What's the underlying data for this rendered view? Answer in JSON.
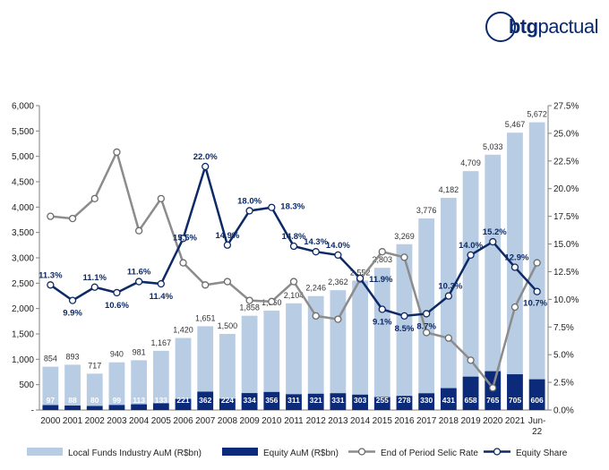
{
  "logo": {
    "bold": "btg",
    "rest": "pactual"
  },
  "chart_data": {
    "type": "bar",
    "categories": [
      "2000",
      "2001",
      "2002",
      "2003",
      "2004",
      "2005",
      "2006",
      "2007",
      "2008",
      "2009",
      "2010",
      "2011",
      "2012",
      "2013",
      "2014",
      "2015",
      "2016",
      "2017",
      "2018",
      "2019",
      "2020",
      "2021",
      "Jun-22"
    ],
    "y_left": {
      "ylim": [
        0,
        6000
      ],
      "ticks": [
        "-",
        "500",
        "1,000",
        "1,500",
        "2,000",
        "2,500",
        "3,000",
        "3,500",
        "4,000",
        "4,500",
        "5,000",
        "5,500",
        "6,000"
      ]
    },
    "y_right": {
      "ylim": [
        0,
        27.5
      ],
      "ticks": [
        "0.0%",
        "2.5%",
        "5.0%",
        "7.5%",
        "10.0%",
        "12.5%",
        "15.0%",
        "17.5%",
        "20.0%",
        "22.5%",
        "25.0%",
        "27.5%"
      ]
    },
    "series": [
      {
        "name": "Local Funds Industry AuM (R$bn)",
        "type": "bar",
        "axis": "left",
        "color": "#b8cce4",
        "values": [
          854,
          893,
          717,
          940,
          981,
          1167,
          1420,
          1651,
          1500,
          1858,
          1960,
          2104,
          2246,
          2362,
          2552,
          2803,
          3269,
          3776,
          4182,
          4709,
          5033,
          5467,
          5672
        ],
        "labels": [
          "854",
          "893",
          "717",
          "940",
          "981",
          "1,167",
          "1,420",
          "1,651",
          "1,500",
          "1,858",
          "1,960",
          "2,104",
          "2,246",
          "2,362",
          "2,552",
          "2,803",
          "3,269",
          "3,776",
          "4,182",
          "4,709",
          "5,033",
          "5,467",
          "5,672"
        ]
      },
      {
        "name": "Equity AuM (R$bn)",
        "type": "bar",
        "axis": "left",
        "color": "#0b2a7a",
        "values": [
          97,
          88,
          80,
          99,
          113,
          133,
          221,
          362,
          224,
          334,
          356,
          311,
          321,
          331,
          303,
          255,
          278,
          330,
          431,
          658,
          765,
          705,
          606
        ],
        "labels": [
          "97",
          "88",
          "80",
          "99",
          "113",
          "133",
          "221",
          "362",
          "224",
          "334",
          "356",
          "311",
          "321",
          "331",
          "303",
          "255",
          "278",
          "330",
          "431",
          "658",
          "765",
          "705",
          "606"
        ]
      },
      {
        "name": "End of Period Selic Rate",
        "type": "line",
        "axis": "right",
        "color": "#8c8c8c",
        "values": [
          17.5,
          17.3,
          19.1,
          23.3,
          16.2,
          19.1,
          13.3,
          11.3,
          11.6,
          9.9,
          9.8,
          11.6,
          8.5,
          8.2,
          11.8,
          14.3,
          13.8,
          7.0,
          6.5,
          4.5,
          2.0,
          9.3,
          13.3
        ]
      },
      {
        "name": "Equity Share",
        "type": "line",
        "axis": "right",
        "color": "#0d2a66",
        "values": [
          11.3,
          9.9,
          11.1,
          10.6,
          11.6,
          11.4,
          15.5,
          22.0,
          14.9,
          18.0,
          18.3,
          14.8,
          14.3,
          14.0,
          11.9,
          9.1,
          8.5,
          8.7,
          10.3,
          14.0,
          15.2,
          12.9,
          10.7
        ],
        "labels": [
          "11.3%",
          "9.9%",
          "11.1%",
          "10.6%",
          "11.6%",
          "11.4%",
          "15.5%",
          "22.0%",
          "14.9%",
          "18.0%",
          "18.3%",
          "14.8%",
          "14.3%",
          "14.0%",
          "11.9%",
          "9.1%",
          "8.5%",
          "8.7%",
          "10.3%",
          "14.0%",
          "15.2%",
          "12.9%",
          "10.7%"
        ]
      }
    ],
    "legend_position": "bottom"
  }
}
